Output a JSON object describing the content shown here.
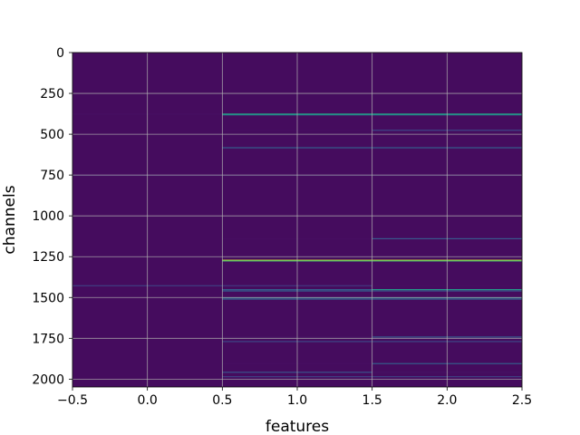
{
  "chart_data": {
    "type": "heatmap",
    "title": "",
    "xlabel": "features",
    "ylabel": "channels",
    "xlim": [
      -0.5,
      2.5
    ],
    "ylim": [
      2048,
      0
    ],
    "y_inverted": true,
    "x_ticks": [
      -0.5,
      0.0,
      0.5,
      1.0,
      1.5,
      2.0,
      2.5
    ],
    "x_tick_labels": [
      "−0.5",
      "0.0",
      "0.5",
      "1.0",
      "1.5",
      "2.0",
      "2.5"
    ],
    "y_ticks": [
      0,
      250,
      500,
      750,
      1000,
      1250,
      1500,
      1750,
      2000
    ],
    "y_tick_labels": [
      "0",
      "250",
      "500",
      "750",
      "1000",
      "1250",
      "1500",
      "1750",
      "2000"
    ],
    "grid": true,
    "colormap": "viridis",
    "n_rows": 2048,
    "n_cols": 3,
    "columns": [
      0,
      1,
      2
    ],
    "background_value": 0.04,
    "highlighted_rows": [
      {
        "row": 377,
        "values": [
          0.06,
          0.62,
          0.62
        ]
      },
      {
        "row": 381,
        "values": [
          0.04,
          0.48,
          0.48
        ]
      },
      {
        "row": 476,
        "values": [
          0.03,
          0.05,
          0.22
        ]
      },
      {
        "row": 583,
        "values": [
          0.04,
          0.3,
          0.3
        ]
      },
      {
        "row": 752,
        "values": [
          0.12,
          0.12,
          0.12
        ]
      },
      {
        "row": 1140,
        "values": [
          0.03,
          0.05,
          0.28
        ]
      },
      {
        "row": 1272,
        "values": [
          0.04,
          0.95,
          0.95
        ]
      },
      {
        "row": 1276,
        "values": [
          0.04,
          0.7,
          0.7
        ]
      },
      {
        "row": 1428,
        "values": [
          0.2,
          0.18,
          0.05
        ]
      },
      {
        "row": 1452,
        "values": [
          0.04,
          0.3,
          0.55
        ]
      },
      {
        "row": 1460,
        "values": [
          0.04,
          0.3,
          0.25
        ]
      },
      {
        "row": 1502,
        "values": [
          0.04,
          0.35,
          0.4
        ]
      },
      {
        "row": 1510,
        "values": [
          0.04,
          0.3,
          0.3
        ]
      },
      {
        "row": 1742,
        "values": [
          0.04,
          0.06,
          0.28
        ]
      },
      {
        "row": 1770,
        "values": [
          0.04,
          0.22,
          0.22
        ]
      },
      {
        "row": 1905,
        "values": [
          0.04,
          0.05,
          0.3
        ]
      },
      {
        "row": 1958,
        "values": [
          0.04,
          0.25,
          0.06
        ]
      },
      {
        "row": 1985,
        "values": [
          0.04,
          0.2,
          0.2
        ]
      }
    ]
  }
}
